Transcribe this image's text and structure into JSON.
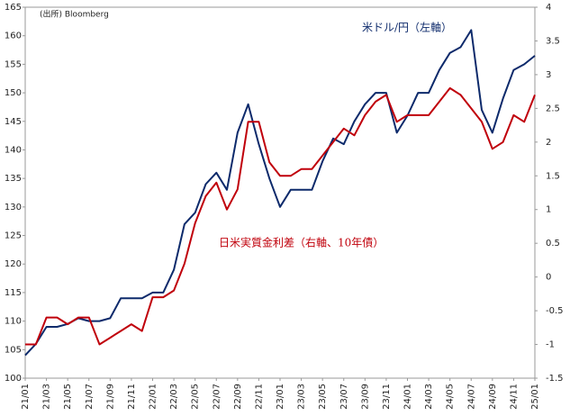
{
  "chart_data": {
    "type": "line",
    "annotations": [
      "(出所) Bloomberg",
      "米ドル/円（左軸）",
      "日米実質金利差（右軸、10年債）"
    ],
    "categories": [
      "21/01",
      null,
      "21/03",
      null,
      "21/05",
      null,
      "21/07",
      null,
      "21/09",
      null,
      "21/11",
      null,
      "22/01",
      null,
      "22/03",
      null,
      "22/05",
      null,
      "22/07",
      null,
      "22/09",
      null,
      "22/11",
      null,
      "23/01",
      null,
      "23/03",
      null,
      "23/05",
      null,
      "23/07",
      null,
      "23/09",
      null,
      "23/11",
      null,
      "24/01",
      null,
      "24/03",
      null,
      "24/05",
      null,
      "24/07",
      null,
      "24/09",
      null,
      "24/11",
      null,
      "25/01"
    ],
    "series": [
      {
        "name": "米ドル/円",
        "color": "#0d2a6b",
        "values": [
          104,
          106,
          109,
          109,
          109.5,
          110.5,
          110,
          110,
          110.5,
          114,
          114,
          114,
          115,
          115,
          119,
          127,
          129,
          134,
          136,
          133,
          143,
          148,
          141,
          135,
          130,
          133,
          133,
          133,
          138,
          142,
          141,
          145,
          148,
          150,
          150,
          143,
          146,
          150,
          150,
          154,
          157,
          158,
          161,
          147,
          143,
          149,
          154,
          155,
          156.5
        ]
      },
      {
        "name": "日米実質金利差",
        "color": "#c0000b",
        "axis": "y2",
        "values": [
          -1.0,
          -1.0,
          -0.6,
          -0.6,
          -0.7,
          -0.6,
          -0.6,
          -1.0,
          -0.9,
          -0.8,
          -0.7,
          -0.8,
          -0.3,
          -0.3,
          -0.2,
          0.2,
          0.8,
          1.2,
          1.4,
          1.0,
          1.3,
          2.3,
          2.3,
          1.7,
          1.5,
          1.5,
          1.6,
          1.6,
          1.8,
          2.0,
          2.2,
          2.1,
          2.4,
          2.6,
          2.7,
          2.3,
          2.4,
          2.4,
          2.4,
          2.6,
          2.8,
          2.7,
          2.5,
          2.3,
          1.9,
          2.0,
          2.4,
          2.3,
          2.7
        ]
      }
    ],
    "ylim": [
      100,
      165
    ],
    "yticks": [
      100,
      105,
      110,
      115,
      120,
      125,
      130,
      135,
      140,
      145,
      150,
      155,
      160,
      165
    ],
    "y2lim": [
      -1.5,
      4
    ],
    "y2ticks": [
      -1.5,
      -1,
      -0.5,
      0,
      0.5,
      1,
      1.5,
      2,
      2.5,
      3,
      3.5,
      4
    ],
    "grid": false
  }
}
